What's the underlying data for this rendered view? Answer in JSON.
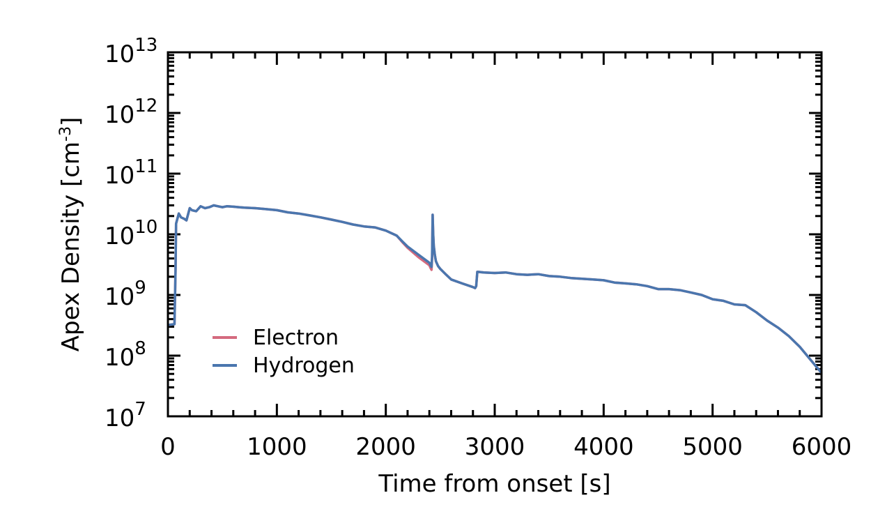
{
  "chart_data": {
    "type": "line",
    "title": "",
    "xlabel": "Time from onset [s]",
    "ylabel_main": "Apex Density [cm",
    "ylabel_sup": "-3",
    "ylabel_close": "]",
    "xlim": [
      0,
      6000
    ],
    "ylim": [
      10000000.0,
      10000000000000.0
    ],
    "yscale": "log",
    "grid": false,
    "legend_position": "bottom-left",
    "x_ticks": [
      {
        "value": 0,
        "label": "0"
      },
      {
        "value": 1000,
        "label": "1000"
      },
      {
        "value": 2000,
        "label": "2000"
      },
      {
        "value": 3000,
        "label": "3000"
      },
      {
        "value": 4000,
        "label": "4000"
      },
      {
        "value": 5000,
        "label": "5000"
      },
      {
        "value": 6000,
        "label": "6000"
      }
    ],
    "y_ticks": [
      {
        "exp": 7,
        "base": "10",
        "sup": "7"
      },
      {
        "exp": 8,
        "base": "10",
        "sup": "8"
      },
      {
        "exp": 9,
        "base": "10",
        "sup": "9"
      },
      {
        "exp": 10,
        "base": "10",
        "sup": "10"
      },
      {
        "exp": 11,
        "base": "10",
        "sup": "11"
      },
      {
        "exp": 12,
        "base": "10",
        "sup": "12"
      },
      {
        "exp": 13,
        "base": "10",
        "sup": "13"
      }
    ],
    "series": [
      {
        "name": "Electron",
        "color": "#d46a7e",
        "x": [
          0,
          60,
          70,
          75,
          100,
          120,
          150,
          170,
          200,
          220,
          260,
          300,
          340,
          380,
          420,
          460,
          500,
          540,
          600,
          650,
          700,
          800,
          900,
          1000,
          1100,
          1200,
          1300,
          1400,
          1500,
          1600,
          1700,
          1800,
          1900,
          2000,
          2100,
          2150,
          2200,
          2300,
          2400,
          2410,
          2420,
          2425,
          2430,
          2435,
          2440,
          2450,
          2460,
          2480,
          2500,
          2550,
          2600,
          2700,
          2800,
          2820,
          2830,
          2840,
          2850,
          2900,
          3000,
          3100,
          3200,
          3300,
          3400,
          3500,
          3600,
          3700,
          3800,
          3900,
          4000,
          4100,
          4200,
          4300,
          4400,
          4500,
          4600,
          4700,
          4800,
          4900,
          5000,
          5100,
          5200,
          5300,
          5400,
          5500,
          5600,
          5700,
          5800,
          5900,
          6000
        ],
        "y": [
          320000000.0,
          330000000.0,
          2500000000.0,
          15000000000.0,
          22000000000.0,
          19000000000.0,
          18000000000.0,
          17000000000.0,
          27000000000.0,
          25000000000.0,
          24000000000.0,
          29000000000.0,
          27000000000.0,
          28000000000.0,
          30000000000.0,
          29000000000.0,
          28000000000.0,
          29000000000.0,
          28500000000.0,
          28000000000.0,
          27500000000.0,
          27000000000.0,
          26000000000.0,
          25000000000.0,
          23000000000.0,
          22000000000.0,
          20500000000.0,
          19000000000.0,
          17500000000.0,
          16000000000.0,
          14500000000.0,
          13500000000.0,
          13000000000.0,
          11500000000.0,
          9500000000.0,
          7500000000.0,
          6000000000.0,
          4200000000.0,
          3100000000.0,
          2800000000.0,
          2600000000.0,
          4000000000.0,
          21000000000.0,
          10000000000.0,
          6500000000.0,
          4600000000.0,
          3600000000.0,
          3000000000.0,
          2700000000.0,
          2200000000.0,
          1800000000.0,
          1550000000.0,
          1350000000.0,
          1300000000.0,
          1400000000.0,
          2400000000.0,
          2400000000.0,
          2350000000.0,
          2300000000.0,
          2350000000.0,
          2200000000.0,
          2150000000.0,
          2200000000.0,
          2050000000.0,
          2000000000.0,
          1900000000.0,
          1850000000.0,
          1800000000.0,
          1750000000.0,
          1600000000.0,
          1550000000.0,
          1500000000.0,
          1400000000.0,
          1250000000.0,
          1250000000.0,
          1200000000.0,
          1100000000.0,
          1000000000.0,
          850000000.0,
          800000000.0,
          700000000.0,
          680000000.0,
          520000000.0,
          380000000.0,
          290000000.0,
          210000000.0,
          140000000.0,
          85000000.0,
          52000000.0
        ]
      },
      {
        "name": "Hydrogen",
        "color": "#4a76ae",
        "x": [
          0,
          60,
          70,
          75,
          100,
          120,
          150,
          170,
          200,
          220,
          260,
          300,
          340,
          380,
          420,
          460,
          500,
          540,
          600,
          650,
          700,
          800,
          900,
          1000,
          1100,
          1200,
          1300,
          1400,
          1500,
          1600,
          1700,
          1800,
          1900,
          2000,
          2100,
          2150,
          2200,
          2300,
          2400,
          2410,
          2420,
          2425,
          2430,
          2435,
          2440,
          2450,
          2460,
          2480,
          2500,
          2550,
          2600,
          2700,
          2800,
          2820,
          2830,
          2840,
          2850,
          2900,
          3000,
          3100,
          3200,
          3300,
          3400,
          3500,
          3600,
          3700,
          3800,
          3900,
          4000,
          4100,
          4200,
          4300,
          4400,
          4500,
          4600,
          4700,
          4800,
          4900,
          5000,
          5100,
          5200,
          5300,
          5400,
          5500,
          5600,
          5700,
          5800,
          5900,
          6000
        ],
        "y": [
          320000000.0,
          330000000.0,
          2500000000.0,
          15000000000.0,
          22000000000.0,
          19000000000.0,
          18000000000.0,
          17000000000.0,
          27000000000.0,
          25000000000.0,
          24000000000.0,
          29000000000.0,
          27000000000.0,
          28000000000.0,
          30000000000.0,
          29000000000.0,
          28000000000.0,
          29000000000.0,
          28500000000.0,
          28000000000.0,
          27500000000.0,
          27000000000.0,
          26000000000.0,
          25000000000.0,
          23000000000.0,
          22000000000.0,
          20500000000.0,
          19000000000.0,
          17500000000.0,
          16000000000.0,
          14500000000.0,
          13500000000.0,
          13000000000.0,
          11500000000.0,
          9500000000.0,
          7700000000.0,
          6300000000.0,
          4600000000.0,
          3400000000.0,
          3100000000.0,
          2900000000.0,
          4300000000.0,
          21000000000.0,
          10000000000.0,
          6500000000.0,
          4600000000.0,
          3600000000.0,
          3000000000.0,
          2700000000.0,
          2200000000.0,
          1800000000.0,
          1550000000.0,
          1350000000.0,
          1300000000.0,
          1400000000.0,
          2400000000.0,
          2400000000.0,
          2350000000.0,
          2300000000.0,
          2350000000.0,
          2200000000.0,
          2150000000.0,
          2200000000.0,
          2050000000.0,
          2000000000.0,
          1900000000.0,
          1850000000.0,
          1800000000.0,
          1750000000.0,
          1600000000.0,
          1550000000.0,
          1500000000.0,
          1400000000.0,
          1250000000.0,
          1250000000.0,
          1200000000.0,
          1100000000.0,
          1000000000.0,
          850000000.0,
          800000000.0,
          700000000.0,
          680000000.0,
          520000000.0,
          380000000.0,
          290000000.0,
          210000000.0,
          140000000.0,
          85000000.0,
          52000000.0
        ]
      }
    ]
  }
}
